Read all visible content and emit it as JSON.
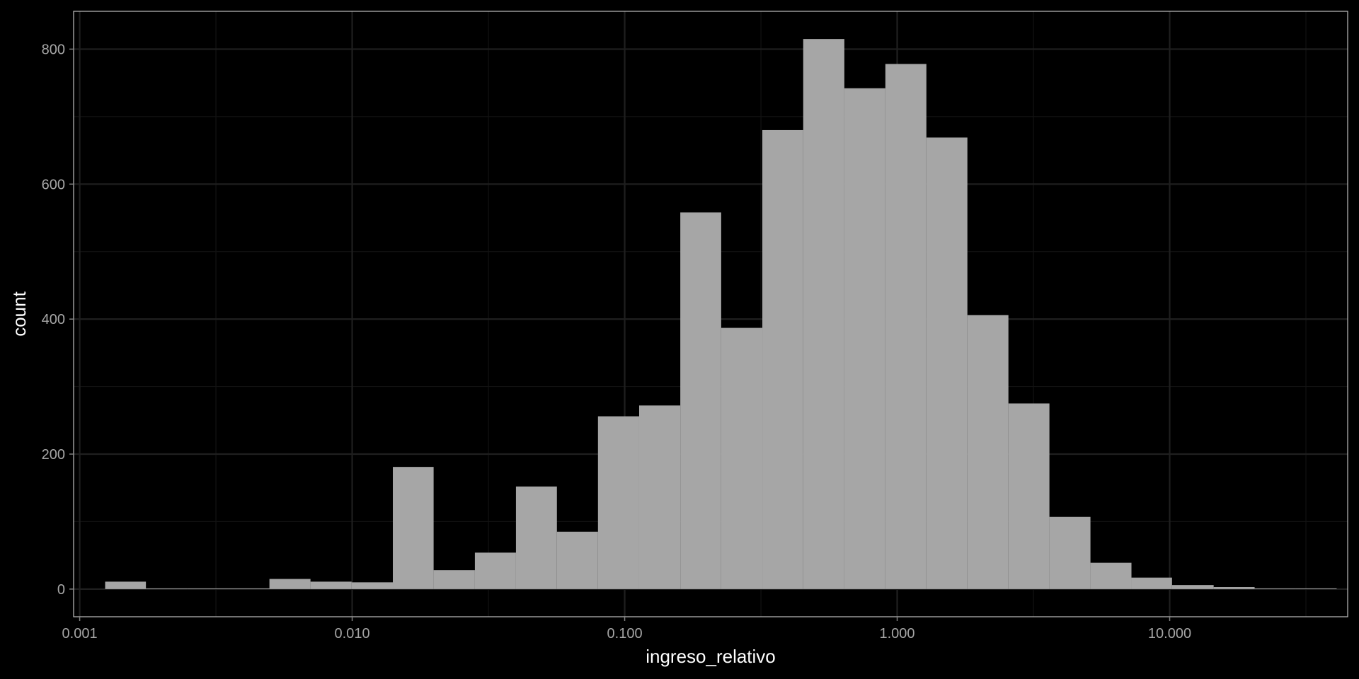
{
  "chart_data": {
    "type": "bar",
    "title": "",
    "xlabel": "ingreso_relativo",
    "ylabel": "count",
    "x_scale": "log10",
    "x_ticks": [
      0.001,
      0.01,
      0.1,
      1,
      10
    ],
    "x_tick_labels": [
      "0.001",
      "0.010",
      "0.100",
      "1.000",
      "10.000"
    ],
    "y_ticks": [
      0,
      200,
      400,
      600,
      800
    ],
    "y_tick_labels": [
      "0",
      "200",
      "400",
      "600",
      "800"
    ],
    "xlim": [
      0.00095,
      45
    ],
    "ylim": [
      -41,
      856
    ],
    "grid": true,
    "colors": {
      "background": "#000000",
      "bar": "#a6a6a6",
      "grid_major": "#1f1f1f",
      "grid_minor": "#121212",
      "panel_border": "#bfbfbf"
    },
    "bins": [
      {
        "x_min": 0.00124,
        "x_max": 0.00175,
        "count": 11
      },
      {
        "x_min": 0.00175,
        "x_max": 0.00248,
        "count": 0
      },
      {
        "x_min": 0.00248,
        "x_max": 0.00351,
        "count": 1
      },
      {
        "x_min": 0.00351,
        "x_max": 0.00497,
        "count": 0
      },
      {
        "x_min": 0.00497,
        "x_max": 0.00703,
        "count": 15
      },
      {
        "x_min": 0.00703,
        "x_max": 0.00995,
        "count": 11
      },
      {
        "x_min": 0.00995,
        "x_max": 0.0141,
        "count": 10
      },
      {
        "x_min": 0.0141,
        "x_max": 0.0199,
        "count": 181
      },
      {
        "x_min": 0.0199,
        "x_max": 0.0282,
        "count": 28
      },
      {
        "x_min": 0.0282,
        "x_max": 0.0399,
        "count": 54
      },
      {
        "x_min": 0.0399,
        "x_max": 0.0564,
        "count": 152
      },
      {
        "x_min": 0.0564,
        "x_max": 0.0798,
        "count": 85
      },
      {
        "x_min": 0.0798,
        "x_max": 0.113,
        "count": 256
      },
      {
        "x_min": 0.113,
        "x_max": 0.16,
        "count": 272
      },
      {
        "x_min": 0.16,
        "x_max": 0.226,
        "count": 558
      },
      {
        "x_min": 0.226,
        "x_max": 0.32,
        "count": 387
      },
      {
        "x_min": 0.32,
        "x_max": 0.452,
        "count": 680
      },
      {
        "x_min": 0.452,
        "x_max": 0.64,
        "count": 815
      },
      {
        "x_min": 0.64,
        "x_max": 0.905,
        "count": 742
      },
      {
        "x_min": 0.905,
        "x_max": 1.28,
        "count": 778
      },
      {
        "x_min": 1.28,
        "x_max": 1.81,
        "count": 669
      },
      {
        "x_min": 1.81,
        "x_max": 2.56,
        "count": 406
      },
      {
        "x_min": 2.56,
        "x_max": 3.62,
        "count": 275
      },
      {
        "x_min": 3.62,
        "x_max": 5.12,
        "count": 107
      },
      {
        "x_min": 5.12,
        "x_max": 7.24,
        "count": 39
      },
      {
        "x_min": 7.24,
        "x_max": 10.2,
        "count": 17
      },
      {
        "x_min": 10.2,
        "x_max": 14.5,
        "count": 6
      },
      {
        "x_min": 14.5,
        "x_max": 20.5,
        "count": 3
      },
      {
        "x_min": 20.5,
        "x_max": 29.0,
        "count": 0
      },
      {
        "x_min": 29.0,
        "x_max": 41.0,
        "count": 1
      }
    ]
  }
}
